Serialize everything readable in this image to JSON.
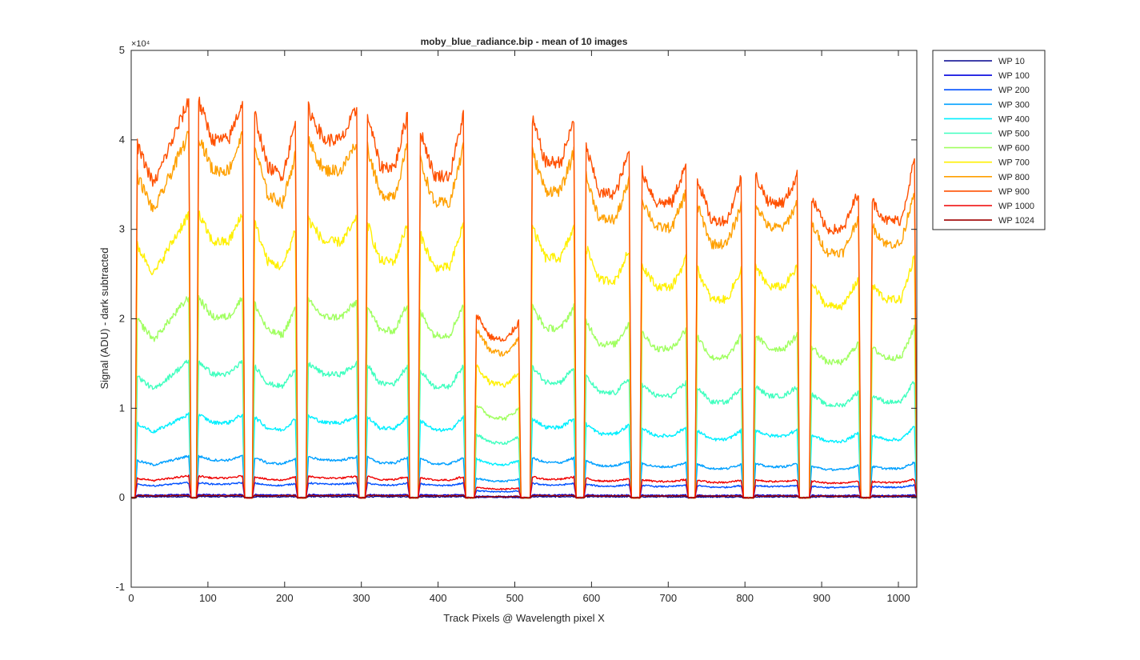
{
  "chart_data": {
    "type": "line",
    "title": "moby_blue_radiance.bip - mean of 10 images",
    "xlabel": "Track Pixels @ Wavelength pixel X",
    "ylabel": "Signal (ADU) - dark subtracted",
    "y_exponent_label": "×10⁴",
    "y_exponent": 10000,
    "xlim": [
      0,
      1024
    ],
    "ylim": [
      -10000,
      50000
    ],
    "xticks": [
      0,
      100,
      200,
      300,
      400,
      500,
      600,
      700,
      800,
      900,
      1000
    ],
    "yticks": [
      -1,
      0,
      1,
      2,
      3,
      4,
      5
    ],
    "grid": false,
    "legend_position": "outside-top-right",
    "segments": [
      {
        "start": 5,
        "end": 78,
        "profile": [
          40000,
          35000,
          40000,
          45000
        ]
      },
      {
        "start": 85,
        "end": 148,
        "profile": [
          45000,
          40000,
          40000,
          45000
        ]
      },
      {
        "start": 158,
        "end": 217,
        "profile": [
          44000,
          37000,
          36000,
          43000
        ]
      },
      {
        "start": 228,
        "end": 297,
        "profile": [
          44000,
          40000,
          40000,
          44000
        ]
      },
      {
        "start": 305,
        "end": 363,
        "profile": [
          44000,
          37000,
          37000,
          44000
        ]
      },
      {
        "start": 374,
        "end": 436,
        "profile": [
          42000,
          36000,
          36000,
          44000
        ]
      },
      {
        "start": 447,
        "end": 508,
        "profile": [
          21000,
          18000,
          17500,
          20000
        ]
      },
      {
        "start": 520,
        "end": 580,
        "profile": [
          43000,
          37500,
          37500,
          43000
        ]
      },
      {
        "start": 590,
        "end": 652,
        "profile": [
          40000,
          34000,
          34000,
          39500
        ]
      },
      {
        "start": 663,
        "end": 726,
        "profile": [
          37000,
          33000,
          33000,
          38000
        ]
      },
      {
        "start": 735,
        "end": 798,
        "profile": [
          36500,
          31000,
          31000,
          36500
        ]
      },
      {
        "start": 811,
        "end": 871,
        "profile": [
          36500,
          33000,
          33000,
          36500
        ]
      },
      {
        "start": 884,
        "end": 951,
        "profile": [
          34000,
          30000,
          30000,
          35000
        ]
      },
      {
        "start": 963,
        "end": 1024,
        "profile": [
          33500,
          31000,
          31000,
          39000
        ]
      }
    ],
    "series": [
      {
        "name": "WP 10",
        "color": "#00008F",
        "scale": 0.003
      },
      {
        "name": "WP 100",
        "color": "#0000DF",
        "scale": 0.008
      },
      {
        "name": "WP 200",
        "color": "#0050FF",
        "scale": 0.038
      },
      {
        "name": "WP 300",
        "color": "#00A0FF",
        "scale": 0.105
      },
      {
        "name": "WP 400",
        "color": "#00EFFF",
        "scale": 0.21
      },
      {
        "name": "WP 500",
        "color": "#40FFBF",
        "scale": 0.345
      },
      {
        "name": "WP 600",
        "color": "#A0FF60",
        "scale": 0.505
      },
      {
        "name": "WP 700",
        "color": "#FFF000",
        "scale": 0.715
      },
      {
        "name": "WP 800",
        "color": "#FFA000",
        "scale": 0.915
      },
      {
        "name": "WP 900",
        "color": "#FF5000",
        "scale": 1.0
      },
      {
        "name": "WP 1000",
        "color": "#EF0000",
        "scale": 0.055
      },
      {
        "name": "WP 1024",
        "color": "#9F0000",
        "scale": 0.006
      }
    ]
  }
}
